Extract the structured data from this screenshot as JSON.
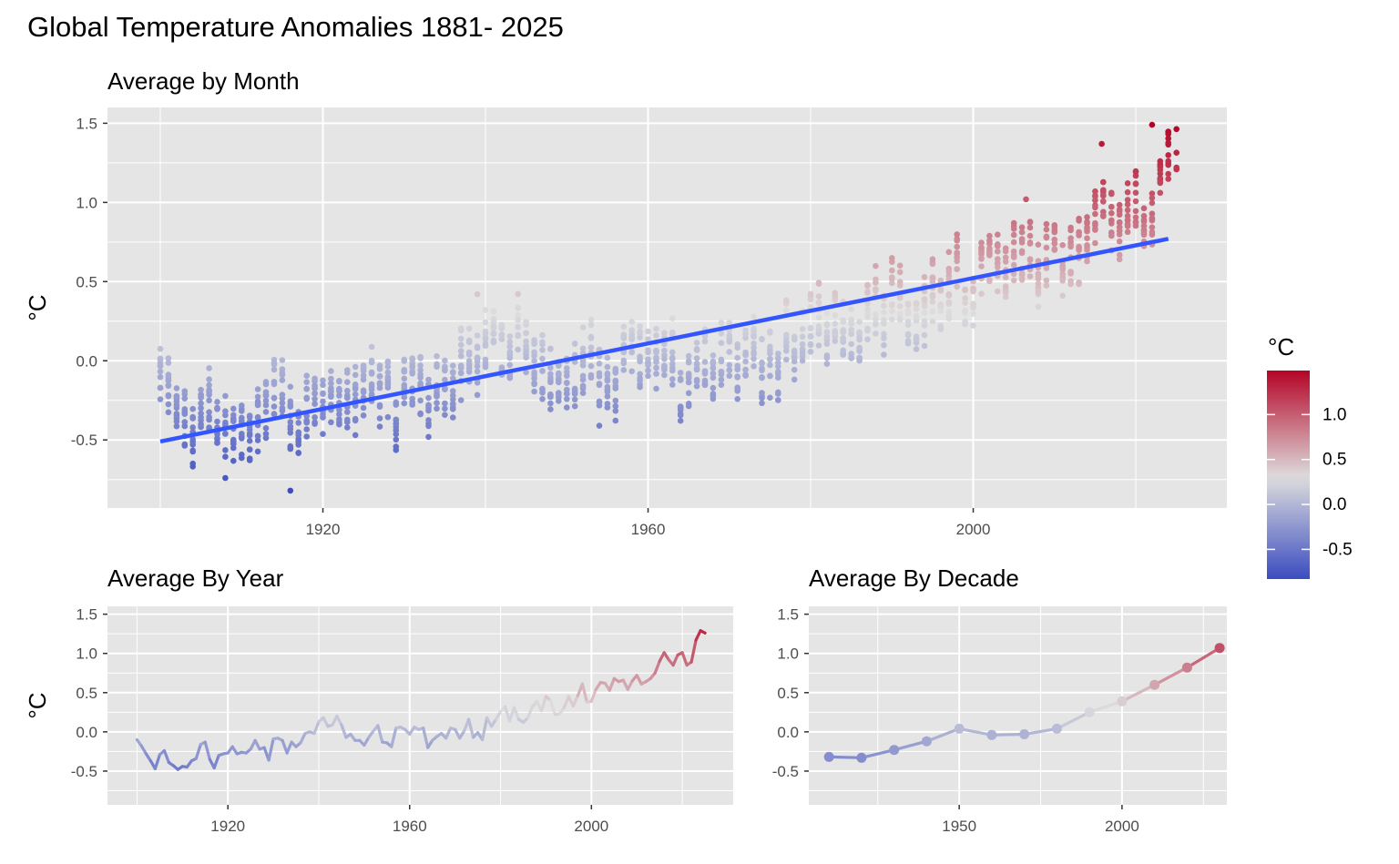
{
  "title": "Global Temperature Anomalies 1881- 2025",
  "color_scale": {
    "low": "#3B4CC0",
    "mid": "#DDDDDD",
    "high": "#B40426",
    "midpoint": 0.3
  },
  "panel_bg": "#E5E5E5",
  "trend_color": "#3355FF",
  "legend": {
    "title": "°C",
    "ticks": [
      "1.0",
      "0.5",
      "0.0",
      "-0.5"
    ],
    "tick_values": [
      1.0,
      0.5,
      0.0,
      -0.5
    ],
    "range": [
      -0.83,
      1.49
    ]
  },
  "chart_data": [
    {
      "type": "scatter",
      "title": "Average by Month",
      "xlabel": "",
      "ylabel": "°C",
      "xlim": [
        1893.5,
        2031.2
      ],
      "ylim": [
        -0.93,
        1.6
      ],
      "xticks": [
        1920,
        1960,
        2000
      ],
      "xtick_labels": [
        "1920",
        "1960",
        "2000"
      ],
      "yticks": [
        -0.5,
        0.0,
        0.5,
        1.0,
        1.5
      ],
      "ytick_labels": [
        "-0.5",
        "0.0",
        "0.5",
        "1.0",
        "1.5"
      ],
      "year_range": [
        1900,
        2025
      ],
      "trend": {
        "x": [
          1900,
          2024
        ],
        "y": [
          -0.51,
          0.77
        ]
      },
      "note_points": [
        {
          "x": 1916,
          "y": -0.82
        },
        {
          "x": 1908,
          "y": -0.74
        },
        {
          "x": 2022,
          "y": 1.49
        },
        {
          "x": 2015.8,
          "y": 1.37
        },
        {
          "x": 2006.5,
          "y": 1.02
        },
        {
          "x": 1939,
          "y": 0.42
        },
        {
          "x": 1954,
          "y": -0.41
        }
      ]
    },
    {
      "type": "line",
      "title": "Average By Year",
      "xlabel": "",
      "ylabel": "°C",
      "xlim": [
        1893.5,
        2031.2
      ],
      "ylim": [
        -0.93,
        1.6
      ],
      "xticks": [
        1920,
        1960,
        2000
      ],
      "xtick_labels": [
        "1920",
        "1960",
        "2000"
      ],
      "yticks": [
        -0.5,
        0.0,
        0.5,
        1.0,
        1.5
      ],
      "ytick_labels": [
        "-0.5",
        "0.0",
        "0.5",
        "1.0",
        "1.5"
      ],
      "x": [
        1900,
        1901,
        1902,
        1903,
        1904,
        1905,
        1906,
        1907,
        1908,
        1909,
        1910,
        1911,
        1912,
        1913,
        1914,
        1915,
        1916,
        1917,
        1918,
        1919,
        1920,
        1921,
        1922,
        1923,
        1924,
        1925,
        1926,
        1927,
        1928,
        1929,
        1930,
        1931,
        1932,
        1933,
        1934,
        1935,
        1936,
        1937,
        1938,
        1939,
        1940,
        1941,
        1942,
        1943,
        1944,
        1945,
        1946,
        1947,
        1948,
        1949,
        1950,
        1951,
        1952,
        1953,
        1954,
        1955,
        1956,
        1957,
        1958,
        1959,
        1960,
        1961,
        1962,
        1963,
        1964,
        1965,
        1966,
        1967,
        1968,
        1969,
        1970,
        1971,
        1972,
        1973,
        1974,
        1975,
        1976,
        1977,
        1978,
        1979,
        1980,
        1981,
        1982,
        1983,
        1984,
        1985,
        1986,
        1987,
        1988,
        1989,
        1990,
        1991,
        1992,
        1993,
        1994,
        1995,
        1996,
        1997,
        1998,
        1999,
        2000,
        2001,
        2002,
        2003,
        2004,
        2005,
        2006,
        2007,
        2008,
        2009,
        2010,
        2011,
        2012,
        2013,
        2014,
        2015,
        2016,
        2017,
        2018,
        2019,
        2020,
        2021,
        2022,
        2023,
        2024,
        2025
      ],
      "y": [
        -0.1,
        -0.18,
        -0.28,
        -0.37,
        -0.47,
        -0.29,
        -0.24,
        -0.39,
        -0.43,
        -0.48,
        -0.44,
        -0.45,
        -0.37,
        -0.34,
        -0.16,
        -0.13,
        -0.35,
        -0.46,
        -0.3,
        -0.28,
        -0.27,
        -0.19,
        -0.28,
        -0.26,
        -0.27,
        -0.22,
        -0.11,
        -0.22,
        -0.2,
        -0.36,
        -0.09,
        -0.08,
        -0.11,
        -0.27,
        -0.13,
        -0.19,
        -0.14,
        -0.02,
        -0.0,
        -0.02,
        0.13,
        0.18,
        0.07,
        0.09,
        0.2,
        0.09,
        -0.07,
        -0.03,
        -0.11,
        -0.11,
        -0.17,
        -0.07,
        0.01,
        0.08,
        -0.13,
        -0.14,
        -0.19,
        0.05,
        0.06,
        0.03,
        -0.03,
        0.06,
        0.03,
        0.05,
        -0.2,
        -0.11,
        -0.06,
        -0.02,
        -0.08,
        0.05,
        0.03,
        -0.08,
        0.01,
        0.16,
        -0.07,
        -0.01,
        -0.1,
        0.18,
        0.07,
        0.16,
        0.26,
        0.32,
        0.14,
        0.31,
        0.16,
        0.12,
        0.18,
        0.32,
        0.39,
        0.27,
        0.45,
        0.4,
        0.22,
        0.23,
        0.31,
        0.45,
        0.33,
        0.46,
        0.61,
        0.38,
        0.39,
        0.54,
        0.63,
        0.62,
        0.53,
        0.68,
        0.64,
        0.66,
        0.54,
        0.65,
        0.72,
        0.61,
        0.64,
        0.68,
        0.75,
        0.9,
        1.01,
        0.92,
        0.85,
        0.98,
        1.01,
        0.85,
        0.89,
        1.17,
        1.29,
        1.26
      ]
    },
    {
      "type": "line",
      "title": "Average By Decade",
      "xlabel": "",
      "ylabel": "",
      "xlim": [
        1903.8,
        2032.2
      ],
      "ylim": [
        -0.93,
        1.6
      ],
      "xticks": [
        1950,
        2000
      ],
      "xtick_labels": [
        "1950",
        "2000"
      ],
      "yticks": [
        -0.5,
        0.0,
        0.5,
        1.0,
        1.5
      ],
      "ytick_labels": [
        "-0.5",
        "0.0",
        "0.5",
        "1.0",
        "1.5"
      ],
      "x": [
        1910,
        1920,
        1930,
        1940,
        1950,
        1960,
        1970,
        1980,
        1990,
        2000,
        2010,
        2020,
        2030
      ],
      "y": [
        -0.32,
        -0.33,
        -0.23,
        -0.12,
        0.04,
        -0.04,
        -0.03,
        0.04,
        0.25,
        0.39,
        0.6,
        0.82,
        1.07
      ]
    }
  ]
}
